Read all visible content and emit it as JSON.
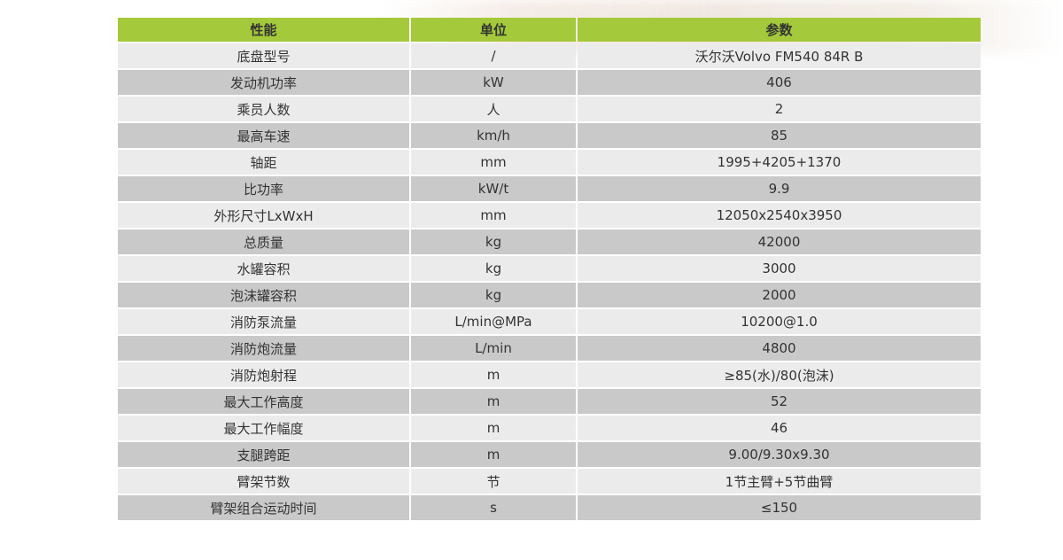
{
  "table": {
    "headers": [
      "性能",
      "单位",
      "参数"
    ],
    "rows": [
      [
        "底盘型号",
        "/",
        "沃尔沃Volvo FM540 84R B"
      ],
      [
        "发动机功率",
        "kW",
        "406"
      ],
      [
        "乘员人数",
        "人",
        "2"
      ],
      [
        "最高车速",
        "km/h",
        "85"
      ],
      [
        "轴距",
        "mm",
        "1995+4205+1370"
      ],
      [
        "比功率",
        "kW/t",
        "9.9"
      ],
      [
        "外形尺寸LxWxH",
        "mm",
        "12050x2540x3950"
      ],
      [
        "总质量",
        "kg",
        "42000"
      ],
      [
        "水罐容积",
        "kg",
        "3000"
      ],
      [
        "泡沫罐容积",
        "kg",
        "2000"
      ],
      [
        "消防泵流量",
        "L/min@MPa",
        "10200@1.0"
      ],
      [
        "消防炮流量",
        "L/min",
        "4800"
      ],
      [
        "消防炮射程",
        "m",
        "≥85(水)/80(泡沫)"
      ],
      [
        "最大工作高度",
        "m",
        "52"
      ],
      [
        "最大工作幅度",
        "m",
        "46"
      ],
      [
        "支腿跨距",
        "m",
        "9.00/9.30x9.30"
      ],
      [
        "臂架节数",
        "节",
        "1节主臂+5节曲臂"
      ],
      [
        "臂架组合运动时间",
        "s",
        "≤150"
      ]
    ]
  },
  "colors": {
    "header": "#a4c93a",
    "row_light": "#ebebeb",
    "row_dark": "#c9c9c9"
  }
}
